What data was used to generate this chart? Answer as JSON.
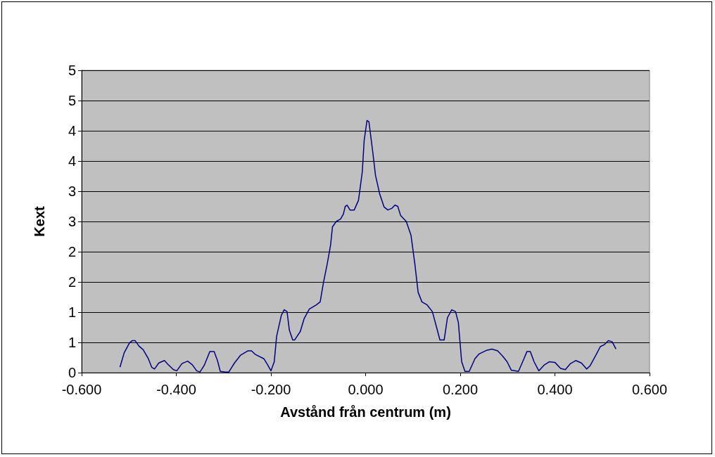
{
  "chart_data": {
    "type": "line",
    "xlabel": "Avstånd från centrum (m)",
    "ylabel": "Kext",
    "x": [
      -0.519,
      -0.51,
      -0.499,
      -0.493,
      -0.487,
      -0.479,
      -0.47,
      -0.459,
      -0.452,
      -0.446,
      -0.437,
      -0.425,
      -0.418,
      -0.406,
      -0.399,
      -0.388,
      -0.376,
      -0.366,
      -0.357,
      -0.35,
      -0.341,
      -0.329,
      -0.32,
      -0.313,
      -0.307,
      -0.296,
      -0.289,
      -0.277,
      -0.264,
      -0.249,
      -0.241,
      -0.233,
      -0.215,
      -0.207,
      -0.2,
      -0.193,
      -0.188,
      -0.178,
      -0.172,
      -0.166,
      -0.161,
      -0.154,
      -0.15,
      -0.138,
      -0.13,
      -0.119,
      -0.104,
      -0.096,
      -0.089,
      -0.081,
      -0.074,
      -0.07,
      -0.062,
      -0.053,
      -0.047,
      -0.043,
      -0.039,
      -0.033,
      -0.024,
      -0.015,
      -0.007,
      -0.003,
      0.003,
      0.007,
      0.015,
      0.021,
      0.03,
      0.039,
      0.047,
      0.056,
      0.062,
      0.068,
      0.074,
      0.086,
      0.096,
      0.104,
      0.111,
      0.119,
      0.13,
      0.141,
      0.15,
      0.157,
      0.166,
      0.173,
      0.182,
      0.19,
      0.196,
      0.203,
      0.21,
      0.219,
      0.231,
      0.24,
      0.256,
      0.267,
      0.279,
      0.289,
      0.299,
      0.308,
      0.323,
      0.333,
      0.341,
      0.348,
      0.356,
      0.366,
      0.378,
      0.388,
      0.4,
      0.412,
      0.422,
      0.433,
      0.444,
      0.456,
      0.467,
      0.474,
      0.486,
      0.496,
      0.504,
      0.513,
      0.521,
      0.529
    ],
    "series": [
      {
        "color": "#000080",
        "values": [
          0.09,
          0.33,
          0.49,
          0.53,
          0.53,
          0.44,
          0.38,
          0.23,
          0.09,
          0.06,
          0.16,
          0.2,
          0.14,
          0.05,
          0.03,
          0.15,
          0.19,
          0.13,
          0.03,
          0.01,
          0.12,
          0.35,
          0.35,
          0.2,
          0.02,
          0.01,
          0.01,
          0.16,
          0.29,
          0.36,
          0.36,
          0.3,
          0.23,
          0.13,
          0.03,
          0.18,
          0.6,
          0.95,
          1.04,
          1.01,
          0.7,
          0.54,
          0.54,
          0.68,
          0.89,
          1.05,
          1.12,
          1.17,
          1.49,
          1.8,
          2.11,
          2.41,
          2.5,
          2.54,
          2.62,
          2.75,
          2.77,
          2.69,
          2.69,
          2.85,
          3.32,
          3.84,
          4.17,
          4.15,
          3.66,
          3.26,
          2.95,
          2.74,
          2.69,
          2.72,
          2.77,
          2.75,
          2.6,
          2.5,
          2.27,
          1.8,
          1.33,
          1.17,
          1.12,
          1.01,
          0.75,
          0.54,
          0.54,
          0.91,
          1.04,
          1.01,
          0.83,
          0.18,
          0.02,
          0.02,
          0.23,
          0.31,
          0.37,
          0.39,
          0.36,
          0.28,
          0.18,
          0.04,
          0.02,
          0.2,
          0.35,
          0.35,
          0.18,
          0.03,
          0.13,
          0.18,
          0.17,
          0.07,
          0.05,
          0.15,
          0.2,
          0.16,
          0.06,
          0.11,
          0.28,
          0.43,
          0.46,
          0.53,
          0.51,
          0.39
        ]
      }
    ],
    "xlim": [
      -0.6,
      0.6
    ],
    "xticks": [
      {
        "value": -0.6,
        "label": "-0.600"
      },
      {
        "value": -0.4,
        "label": "-0.400"
      },
      {
        "value": -0.2,
        "label": "-0.200"
      },
      {
        "value": 0,
        "label": "0.000"
      },
      {
        "value": 0.2,
        "label": "0.200"
      },
      {
        "value": 0.4,
        "label": "0.400"
      },
      {
        "value": 0.6,
        "label": "0.600"
      }
    ],
    "ylim": [
      0,
      5
    ],
    "yticks": [
      0,
      {
        "value": 0.5,
        "label": "1"
      },
      1,
      {
        "value": 1.5,
        "label": "2"
      },
      2,
      {
        "value": 2.5,
        "label": "3"
      },
      3,
      {
        "value": 3.5,
        "label": "4"
      },
      4,
      {
        "value": 4.5,
        "label": "5"
      },
      5
    ],
    "grid": "y",
    "marker": "none",
    "line_style": "solid"
  }
}
